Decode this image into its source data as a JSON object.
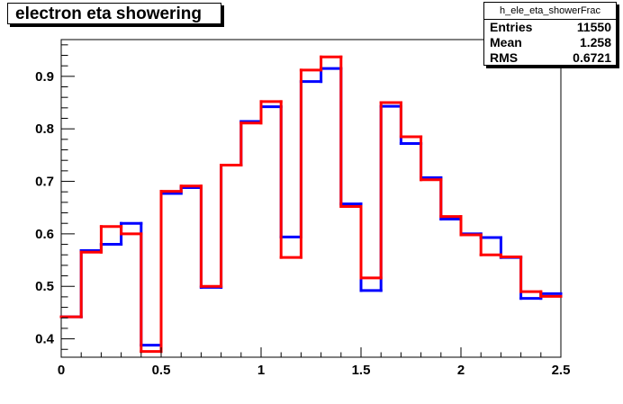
{
  "chart_data": {
    "type": "line",
    "title": "electron eta showering",
    "xlabel": "",
    "ylabel": "",
    "xlim": [
      0,
      2.5
    ],
    "ylim": [
      0.365,
      0.97
    ],
    "grid": false,
    "x_ticks": [
      0,
      0.5,
      1,
      1.5,
      2,
      2.5
    ],
    "y_ticks": [
      0.4,
      0.5,
      0.6,
      0.7,
      0.8,
      0.9
    ],
    "bin_edges": [
      0,
      0.1,
      0.2,
      0.3,
      0.4,
      0.5,
      0.6,
      0.7,
      0.8,
      0.9,
      1.0,
      1.1,
      1.2,
      1.3,
      1.4,
      1.5,
      1.6,
      1.7,
      1.8,
      1.9,
      2.0,
      2.1,
      2.2,
      2.3,
      2.4,
      2.5
    ],
    "series": [
      {
        "color": "#0000ff",
        "values": [
          0.442,
          0.568,
          0.58,
          0.62,
          0.388,
          0.677,
          0.688,
          0.498,
          0.731,
          0.814,
          0.842,
          0.594,
          0.89,
          0.915,
          0.657,
          0.492,
          0.843,
          0.772,
          0.707,
          0.628,
          0.6,
          0.593,
          0.555,
          0.477,
          0.486
        ]
      },
      {
        "color": "#ff0000",
        "values": [
          0.442,
          0.565,
          0.614,
          0.6,
          0.376,
          0.681,
          0.691,
          0.5,
          0.731,
          0.811,
          0.852,
          0.555,
          0.912,
          0.937,
          0.652,
          0.516,
          0.85,
          0.785,
          0.703,
          0.633,
          0.598,
          0.56,
          0.556,
          0.49,
          0.481
        ]
      }
    ]
  },
  "stats": {
    "name": "h_ele_eta_showerFrac",
    "rows": [
      {
        "label": "Entries",
        "value": "11550"
      },
      {
        "label": "Mean",
        "value": "1.258"
      },
      {
        "label": "RMS",
        "value": "0.6721"
      }
    ]
  }
}
